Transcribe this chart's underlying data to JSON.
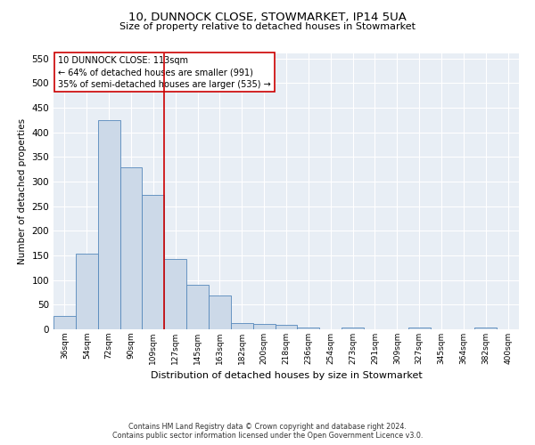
{
  "title": "10, DUNNOCK CLOSE, STOWMARKET, IP14 5UA",
  "subtitle": "Size of property relative to detached houses in Stowmarket",
  "xlabel": "Distribution of detached houses by size in Stowmarket",
  "ylabel": "Number of detached properties",
  "bar_color": "#ccd9e8",
  "bar_edge_color": "#5588bb",
  "background_color": "#e8eef5",
  "grid_color": "#d8dfe8",
  "categories": [
    "36sqm",
    "54sqm",
    "72sqm",
    "90sqm",
    "109sqm",
    "127sqm",
    "145sqm",
    "163sqm",
    "182sqm",
    "200sqm",
    "218sqm",
    "236sqm",
    "254sqm",
    "273sqm",
    "291sqm",
    "309sqm",
    "327sqm",
    "345sqm",
    "364sqm",
    "382sqm",
    "400sqm"
  ],
  "values": [
    27,
    154,
    425,
    328,
    272,
    143,
    91,
    68,
    13,
    11,
    9,
    4,
    0,
    4,
    0,
    0,
    3,
    0,
    0,
    4,
    0
  ],
  "vline_x": 4.5,
  "vline_color": "#cc0000",
  "annotation_text": "10 DUNNOCK CLOSE: 113sqm\n← 64% of detached houses are smaller (991)\n35% of semi-detached houses are larger (535) →",
  "ylim": [
    0,
    560
  ],
  "yticks": [
    0,
    50,
    100,
    150,
    200,
    250,
    300,
    350,
    400,
    450,
    500,
    550
  ],
  "footer_line1": "Contains HM Land Registry data © Crown copyright and database right 2024.",
  "footer_line2": "Contains public sector information licensed under the Open Government Licence v3.0."
}
